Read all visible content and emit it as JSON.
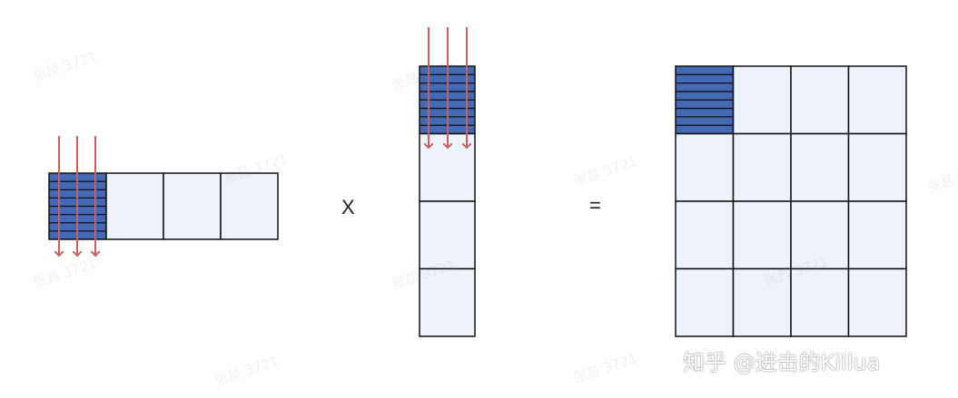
{
  "operators": {
    "times": "X",
    "equals": "="
  },
  "credit": "知乎 @进击的Killua",
  "watermark": "张昌 3721",
  "colors": {
    "tile_fill": "#eef3fb",
    "tile_border": "#111111",
    "highlight_fill": "#4469b5",
    "stripe_line": "#111111",
    "arrow": "#c9605f"
  },
  "diagram": {
    "left_matrix": {
      "rows": 1,
      "cols": 4,
      "highlighted": [
        [
          0,
          0
        ]
      ],
      "arrows": "down"
    },
    "middle_matrix": {
      "rows": 4,
      "cols": 1,
      "highlighted": [
        [
          0,
          0
        ]
      ],
      "arrows": "down"
    },
    "result_matrix": {
      "rows": 4,
      "cols": 4,
      "highlighted": [
        [
          0,
          0
        ]
      ]
    }
  }
}
